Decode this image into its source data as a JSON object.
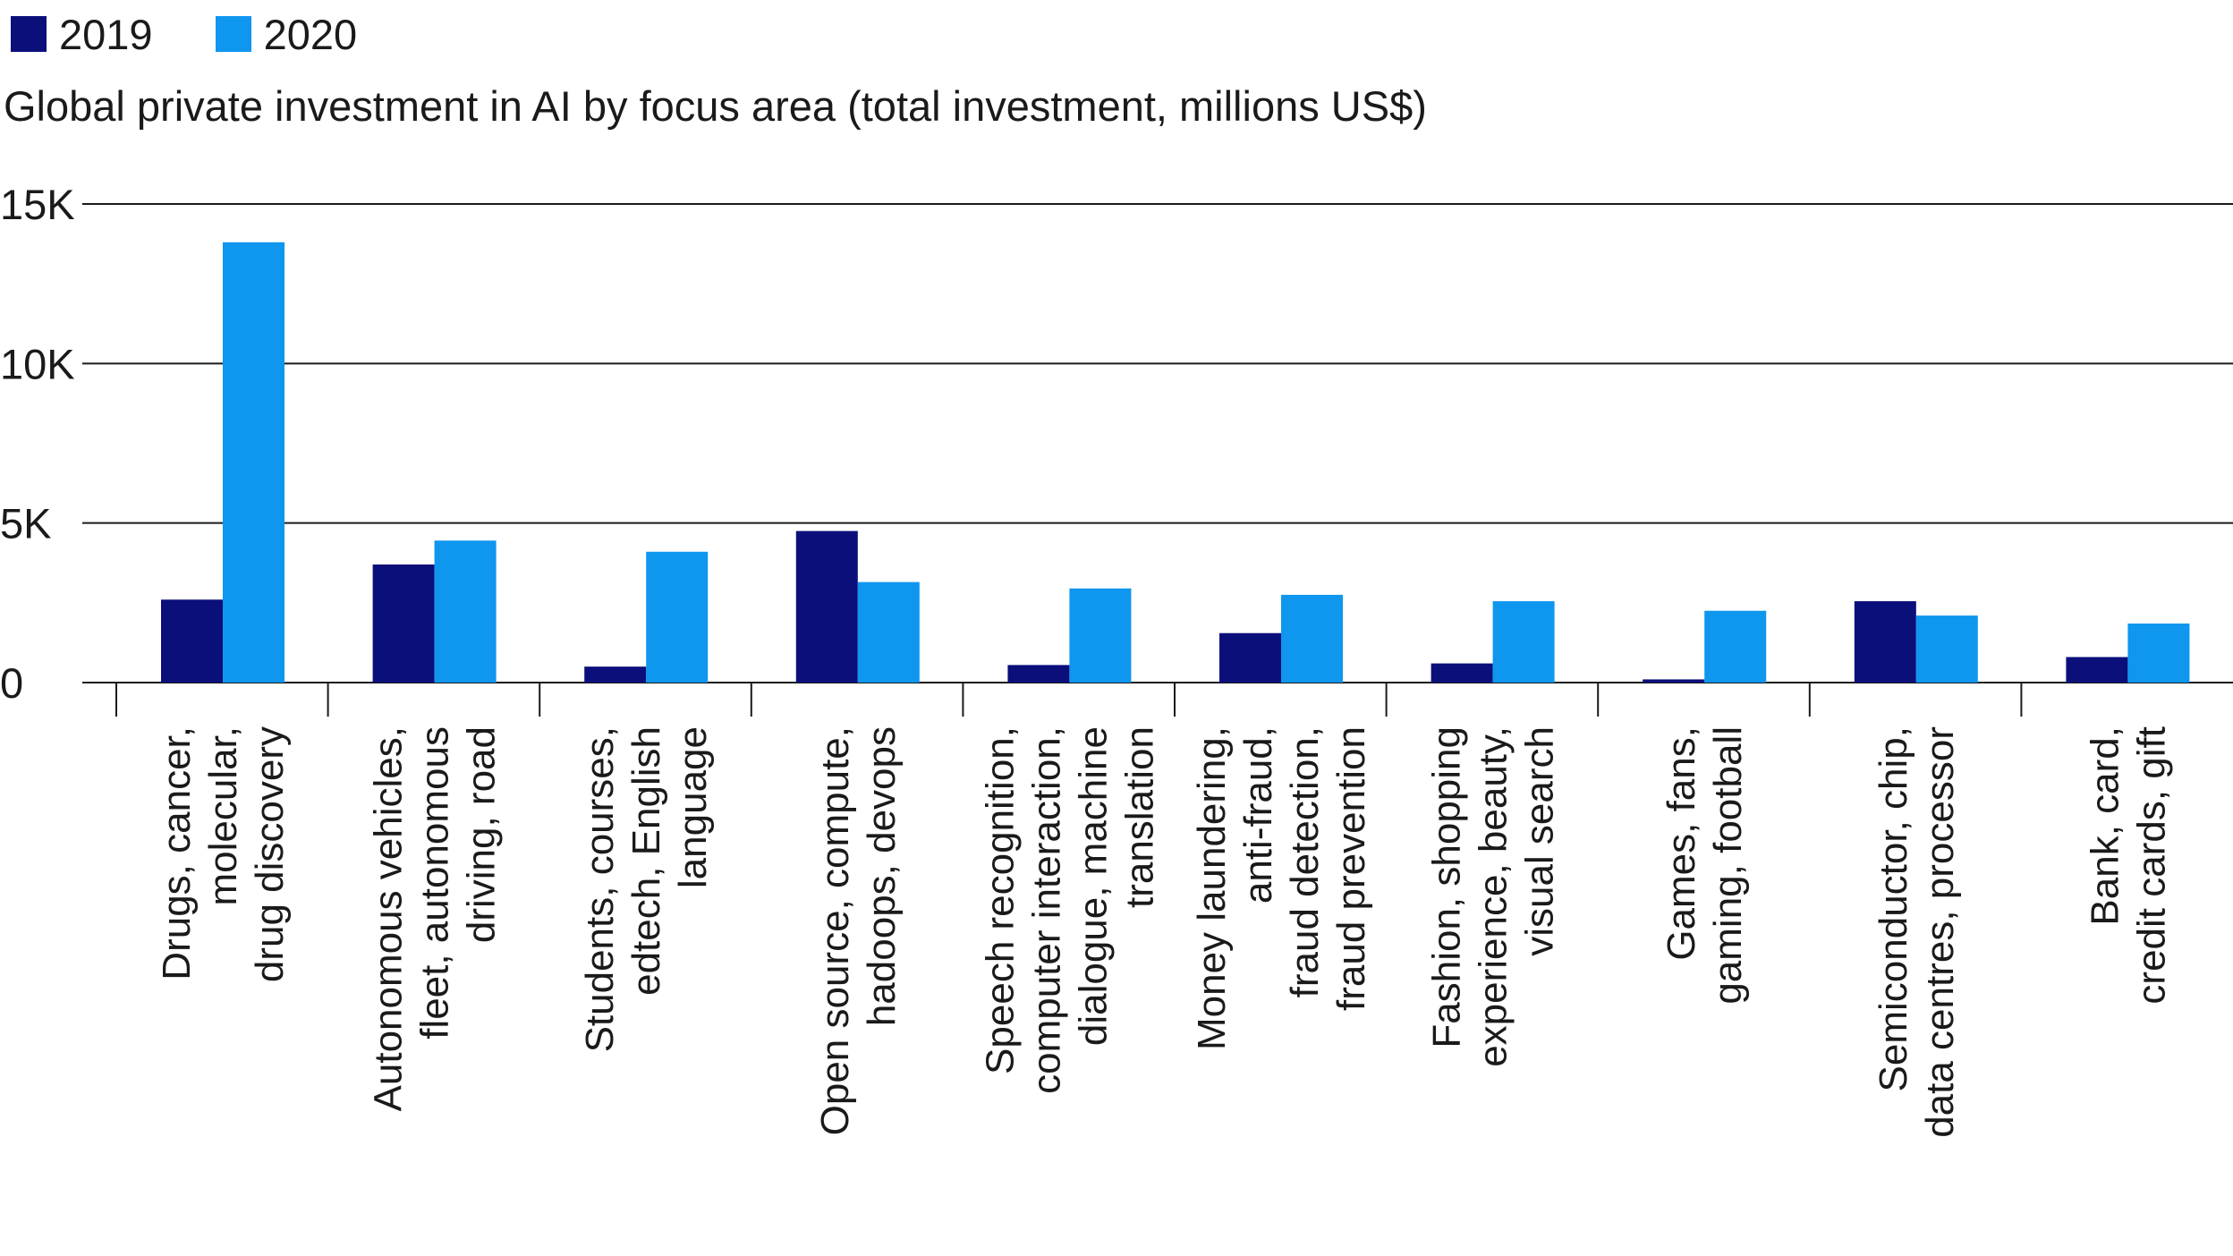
{
  "legend": [
    {
      "label": "2019",
      "color": "#0b0f7a"
    },
    {
      "label": "2020",
      "color": "#0f96ef"
    }
  ],
  "subtitle": "Global private investment in AI by focus area (total investment, millions US$)",
  "chart_data": {
    "type": "bar",
    "title": "",
    "subtitle": "Global private investment in AI by focus area (total investment, millions US$)",
    "xlabel": "",
    "ylabel": "",
    "ylim": [
      0,
      15000
    ],
    "yticks": [
      {
        "value": 0,
        "label": "0"
      },
      {
        "value": 5000,
        "label": "5K"
      },
      {
        "value": 10000,
        "label": "10K"
      },
      {
        "value": 15000,
        "label": "15K"
      }
    ],
    "grid": true,
    "legend_position": "top-left",
    "categories": [
      [
        "Drugs, cancer,",
        "molecular,",
        "drug discovery"
      ],
      [
        "Autonomous vehicles,",
        "fleet, autonomous",
        "driving, road"
      ],
      [
        "Students, courses,",
        "edtech, English",
        "language"
      ],
      [
        "Open source, compute,",
        "hadoops, devops"
      ],
      [
        "Speech recognition,",
        "computer interaction,",
        "dialogue, machine",
        "translation"
      ],
      [
        "Money laundering,",
        "anti-fraud,",
        "fraud detection,",
        "fraud prevention"
      ],
      [
        "Fashion, shopping",
        "experience, beauty,",
        "visual search"
      ],
      [
        "Games, fans,",
        "gaming, football"
      ],
      [
        "Semiconductor, chip,",
        "data centres, processor"
      ],
      [
        "Bank, card,",
        "credit cards, gift"
      ]
    ],
    "series": [
      {
        "name": "2019",
        "color": "#0b0f7a",
        "values": [
          2600,
          3700,
          500,
          4750,
          550,
          1550,
          600,
          100,
          2550,
          800
        ]
      },
      {
        "name": "2020",
        "color": "#0f96ef",
        "values": [
          13800,
          4450,
          4100,
          3150,
          2950,
          2750,
          2550,
          2250,
          2100,
          1850
        ]
      }
    ]
  }
}
